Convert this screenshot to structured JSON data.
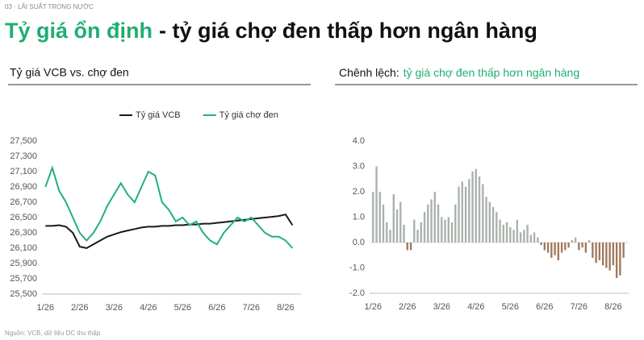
{
  "header": {
    "section": "03 · LÃI SUẤT TRONG NƯỚC",
    "title_highlight": "Tỷ giá ổn định",
    "title_rest": "- tỷ giá chợ đen thấp hơn ngân hàng"
  },
  "footer": {
    "source": "Nguồn: VCB, dữ liệu DC thu thập"
  },
  "chart_data": [
    {
      "type": "line",
      "title": "Tỷ giá VCB vs. chợ đen",
      "x": [
        1.0,
        1.2,
        1.4,
        1.6,
        1.8,
        2.0,
        2.2,
        2.4,
        2.6,
        2.8,
        3.0,
        3.2,
        3.4,
        3.6,
        3.8,
        4.0,
        4.2,
        4.4,
        4.6,
        4.8,
        5.0,
        5.2,
        5.4,
        5.6,
        5.8,
        6.0,
        6.2,
        6.4,
        6.6,
        6.8,
        7.0,
        7.2,
        7.4,
        7.6,
        7.8,
        8.0,
        8.2
      ],
      "series": [
        {
          "name": "Tỷ giá VCB",
          "color": "#1a1a1a",
          "values": [
            26390,
            26390,
            26400,
            26380,
            26300,
            26120,
            26100,
            26150,
            26200,
            26250,
            26280,
            26310,
            26330,
            26350,
            26370,
            26380,
            26380,
            26390,
            26390,
            26400,
            26400,
            26410,
            26410,
            26420,
            26420,
            26430,
            26440,
            26450,
            26460,
            26470,
            26480,
            26490,
            26500,
            26510,
            26520,
            26540,
            26400
          ]
        },
        {
          "name": "Tỷ giá chợ đen",
          "color": "#22b07a",
          "values": [
            26900,
            27150,
            26850,
            26700,
            26500,
            26300,
            26200,
            26300,
            26450,
            26650,
            26800,
            26950,
            26800,
            26700,
            26900,
            27100,
            27050,
            26700,
            26600,
            26450,
            26500,
            26400,
            26450,
            26300,
            26200,
            26150,
            26300,
            26400,
            26500,
            26450,
            26500,
            26400,
            26300,
            26250,
            26250,
            26200,
            26100
          ]
        }
      ],
      "xlim": [
        0.9,
        8.45
      ],
      "xticks": [
        {
          "value": 1,
          "label": "1/26"
        },
        {
          "value": 2,
          "label": "2/26"
        },
        {
          "value": 3,
          "label": "3/26"
        },
        {
          "value": 4,
          "label": "4/26"
        },
        {
          "value": 5,
          "label": "5/26"
        },
        {
          "value": 6,
          "label": "6/26"
        },
        {
          "value": 7,
          "label": "7/26"
        },
        {
          "value": 8,
          "label": "8/26"
        }
      ],
      "ylim": [
        25500,
        27500
      ],
      "yticks": [
        {
          "value": 25500,
          "label": "25,500"
        },
        {
          "value": 25700,
          "label": "25,700"
        },
        {
          "value": 25900,
          "label": "25,900"
        },
        {
          "value": 26100,
          "label": "26,100"
        },
        {
          "value": 26300,
          "label": "26,300"
        },
        {
          "value": 26500,
          "label": "26,500"
        },
        {
          "value": 26700,
          "label": "26,700"
        },
        {
          "value": 26900,
          "label": "26,900"
        },
        {
          "value": 27100,
          "label": "27,100"
        },
        {
          "value": 27300,
          "label": "27,300"
        },
        {
          "value": 27500,
          "label": "27,500"
        }
      ],
      "grid": false,
      "legend": "top"
    },
    {
      "type": "bar",
      "title": "Chênh lệch:",
      "title_highlight": "tỷ giá chợ đen thấp hơn ngân hàng",
      "x": [
        1.0,
        1.1,
        1.2,
        1.3,
        1.4,
        1.5,
        1.6,
        1.7,
        1.8,
        1.9,
        2.0,
        2.1,
        2.2,
        2.3,
        2.4,
        2.5,
        2.6,
        2.7,
        2.8,
        2.9,
        3.0,
        3.1,
        3.2,
        3.3,
        3.4,
        3.5,
        3.6,
        3.7,
        3.8,
        3.9,
        4.0,
        4.1,
        4.2,
        4.3,
        4.4,
        4.5,
        4.6,
        4.7,
        4.8,
        4.9,
        5.0,
        5.1,
        5.2,
        5.3,
        5.4,
        5.5,
        5.6,
        5.7,
        5.8,
        5.9,
        6.0,
        6.1,
        6.2,
        6.3,
        6.4,
        6.5,
        6.6,
        6.7,
        6.8,
        6.9,
        7.0,
        7.1,
        7.2,
        7.3,
        7.4,
        7.5,
        7.6,
        7.7,
        7.8,
        7.9,
        8.0,
        8.1,
        8.2,
        8.3
      ],
      "values": [
        2.0,
        3.0,
        2.0,
        1.5,
        0.8,
        0.5,
        1.9,
        1.3,
        1.6,
        0.7,
        -0.3,
        -0.3,
        0.9,
        0.5,
        0.8,
        1.2,
        1.5,
        1.7,
        2.0,
        1.5,
        1.0,
        0.9,
        1.0,
        0.8,
        1.5,
        2.2,
        2.4,
        2.2,
        2.5,
        2.8,
        2.9,
        2.6,
        2.3,
        1.8,
        1.6,
        1.4,
        1.2,
        0.9,
        0.7,
        0.8,
        0.6,
        0.5,
        0.9,
        0.4,
        0.5,
        0.7,
        0.3,
        0.4,
        0.2,
        -0.1,
        -0.3,
        -0.4,
        -0.6,
        -0.5,
        -0.7,
        -0.4,
        -0.3,
        -0.2,
        0.1,
        0.2,
        -0.3,
        -0.2,
        -0.4,
        0.1,
        -0.6,
        -0.8,
        -0.7,
        -0.9,
        -1.0,
        -1.1,
        -0.9,
        -1.4,
        -1.3,
        -0.6
      ],
      "positive_color": "#a9b1ab",
      "negative_color": "#a0775a",
      "xlim": [
        0.9,
        8.45
      ],
      "xticks": [
        {
          "value": 1,
          "label": "1/26"
        },
        {
          "value": 2,
          "label": "2/26"
        },
        {
          "value": 3,
          "label": "3/26"
        },
        {
          "value": 4,
          "label": "4/26"
        },
        {
          "value": 5,
          "label": "5/26"
        },
        {
          "value": 6,
          "label": "6/26"
        },
        {
          "value": 7,
          "label": "7/26"
        },
        {
          "value": 8,
          "label": "8/26"
        }
      ],
      "ylim": [
        -2,
        4
      ],
      "yticks": [
        {
          "value": -2,
          "label": "-2.0"
        },
        {
          "value": -1,
          "label": "-1.0"
        },
        {
          "value": 0,
          "label": "0.0"
        },
        {
          "value": 1,
          "label": "1.0"
        },
        {
          "value": 2,
          "label": "2.0"
        },
        {
          "value": 3,
          "label": "3.0"
        },
        {
          "value": 4,
          "label": "4.0"
        }
      ],
      "grid": false
    }
  ]
}
